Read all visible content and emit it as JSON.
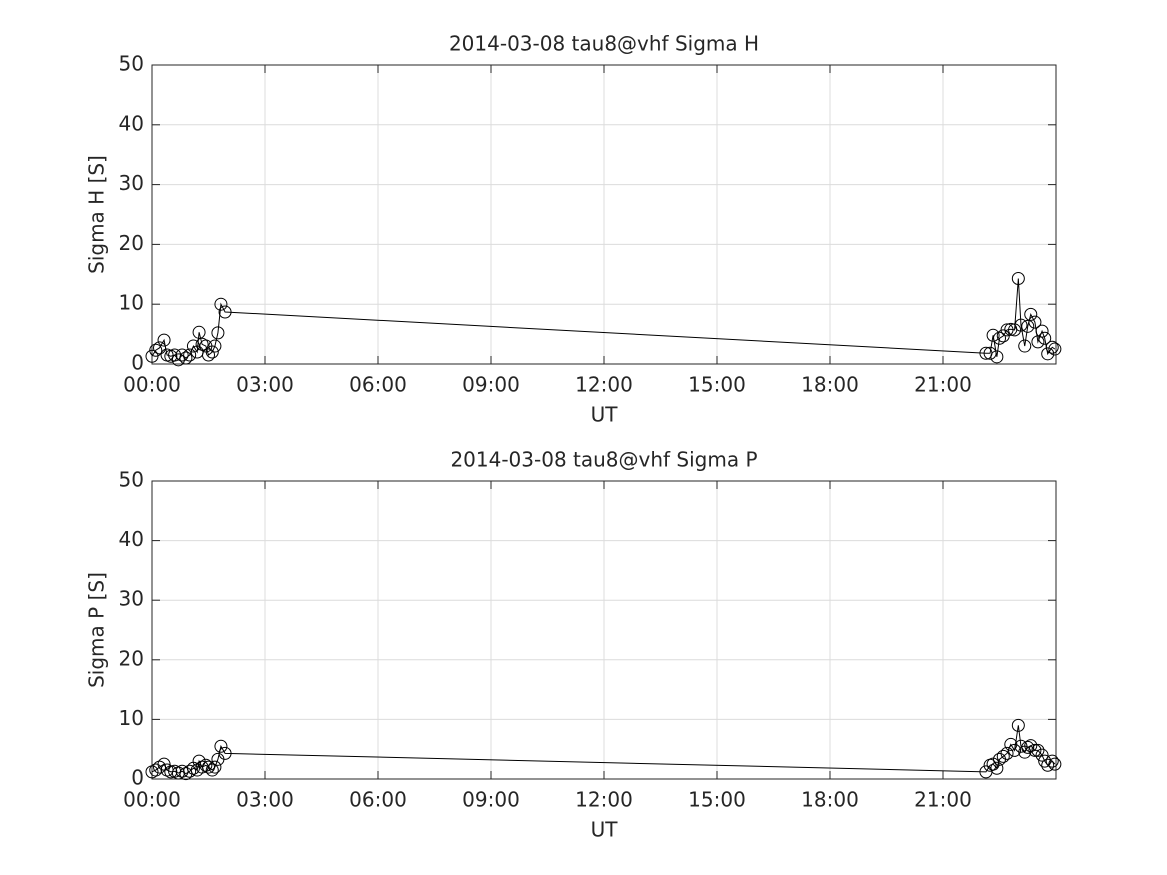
{
  "chart_data": [
    {
      "type": "line",
      "title": "2014-03-08  tau8@vhf Sigma H",
      "xlabel": "UT",
      "ylabel": "Sigma H [S]",
      "x": [
        0.0,
        0.1,
        0.2,
        0.32,
        0.4,
        0.5,
        0.6,
        0.7,
        0.8,
        0.9,
        1.0,
        1.1,
        1.2,
        1.25,
        1.33,
        1.43,
        1.5,
        1.6,
        1.67,
        1.75,
        1.83,
        1.94,
        22.14,
        22.25,
        22.33,
        22.43,
        22.5,
        22.6,
        22.7,
        22.8,
        22.9,
        23.0,
        23.07,
        23.17,
        23.25,
        23.33,
        23.44,
        23.52,
        23.63,
        23.7,
        23.78,
        23.9,
        23.97
      ],
      "values": [
        1.3,
        2.3,
        2.7,
        4.0,
        1.5,
        1.3,
        1.5,
        0.7,
        1.5,
        1.0,
        1.5,
        3.0,
        2.0,
        5.3,
        3.3,
        3.0,
        1.5,
        2.0,
        3.0,
        5.2,
        10.0,
        8.7,
        1.8,
        1.8,
        4.8,
        1.2,
        4.3,
        4.7,
        5.7,
        5.8,
        5.7,
        14.3,
        6.5,
        3.0,
        6.3,
        8.3,
        7.0,
        3.7,
        5.5,
        4.3,
        1.7,
        2.8,
        2.5
      ],
      "color": "#000000",
      "xlim": [
        0,
        24
      ],
      "ylim": [
        0,
        50
      ],
      "xticks": [
        {
          "value": 0,
          "label": "00:00"
        },
        {
          "value": 3,
          "label": "03:00"
        },
        {
          "value": 6,
          "label": "06:00"
        },
        {
          "value": 9,
          "label": "09:00"
        },
        {
          "value": 12,
          "label": "12:00"
        },
        {
          "value": 15,
          "label": "15:00"
        },
        {
          "value": 18,
          "label": "18:00"
        },
        {
          "value": 21,
          "label": "21:00"
        }
      ],
      "yticks": [
        0,
        10,
        20,
        30,
        40,
        50
      ],
      "grid": true
    },
    {
      "type": "line",
      "title": "2014-03-08  tau8@vhf Sigma P",
      "xlabel": "UT",
      "ylabel": "Sigma P [S]",
      "x": [
        0.0,
        0.1,
        0.2,
        0.32,
        0.4,
        0.5,
        0.6,
        0.7,
        0.8,
        0.9,
        1.0,
        1.1,
        1.2,
        1.25,
        1.33,
        1.43,
        1.5,
        1.6,
        1.67,
        1.75,
        1.83,
        1.94,
        22.14,
        22.25,
        22.33,
        22.43,
        22.5,
        22.6,
        22.7,
        22.8,
        22.9,
        23.0,
        23.07,
        23.17,
        23.25,
        23.33,
        23.44,
        23.52,
        23.63,
        23.7,
        23.78,
        23.9,
        23.97
      ],
      "values": [
        1.2,
        1.5,
        2.0,
        2.5,
        1.5,
        1.2,
        1.3,
        1.0,
        1.3,
        0.9,
        1.3,
        1.8,
        1.5,
        3.0,
        2.0,
        2.3,
        2.0,
        1.5,
        2.0,
        3.3,
        5.5,
        4.3,
        1.2,
        2.3,
        2.5,
        1.8,
        3.3,
        3.8,
        4.3,
        5.8,
        4.8,
        9.0,
        5.5,
        4.5,
        5.3,
        5.6,
        4.8,
        4.8,
        4.0,
        3.0,
        2.3,
        3.0,
        2.5
      ],
      "color": "#000000",
      "xlim": [
        0,
        24
      ],
      "ylim": [
        0,
        50
      ],
      "xticks": [
        {
          "value": 0,
          "label": "00:00"
        },
        {
          "value": 3,
          "label": "03:00"
        },
        {
          "value": 6,
          "label": "06:00"
        },
        {
          "value": 9,
          "label": "09:00"
        },
        {
          "value": 12,
          "label": "12:00"
        },
        {
          "value": 15,
          "label": "15:00"
        },
        {
          "value": 18,
          "label": "18:00"
        },
        {
          "value": 21,
          "label": "21:00"
        }
      ],
      "yticks": [
        0,
        10,
        20,
        30,
        40,
        50
      ],
      "grid": true
    }
  ]
}
